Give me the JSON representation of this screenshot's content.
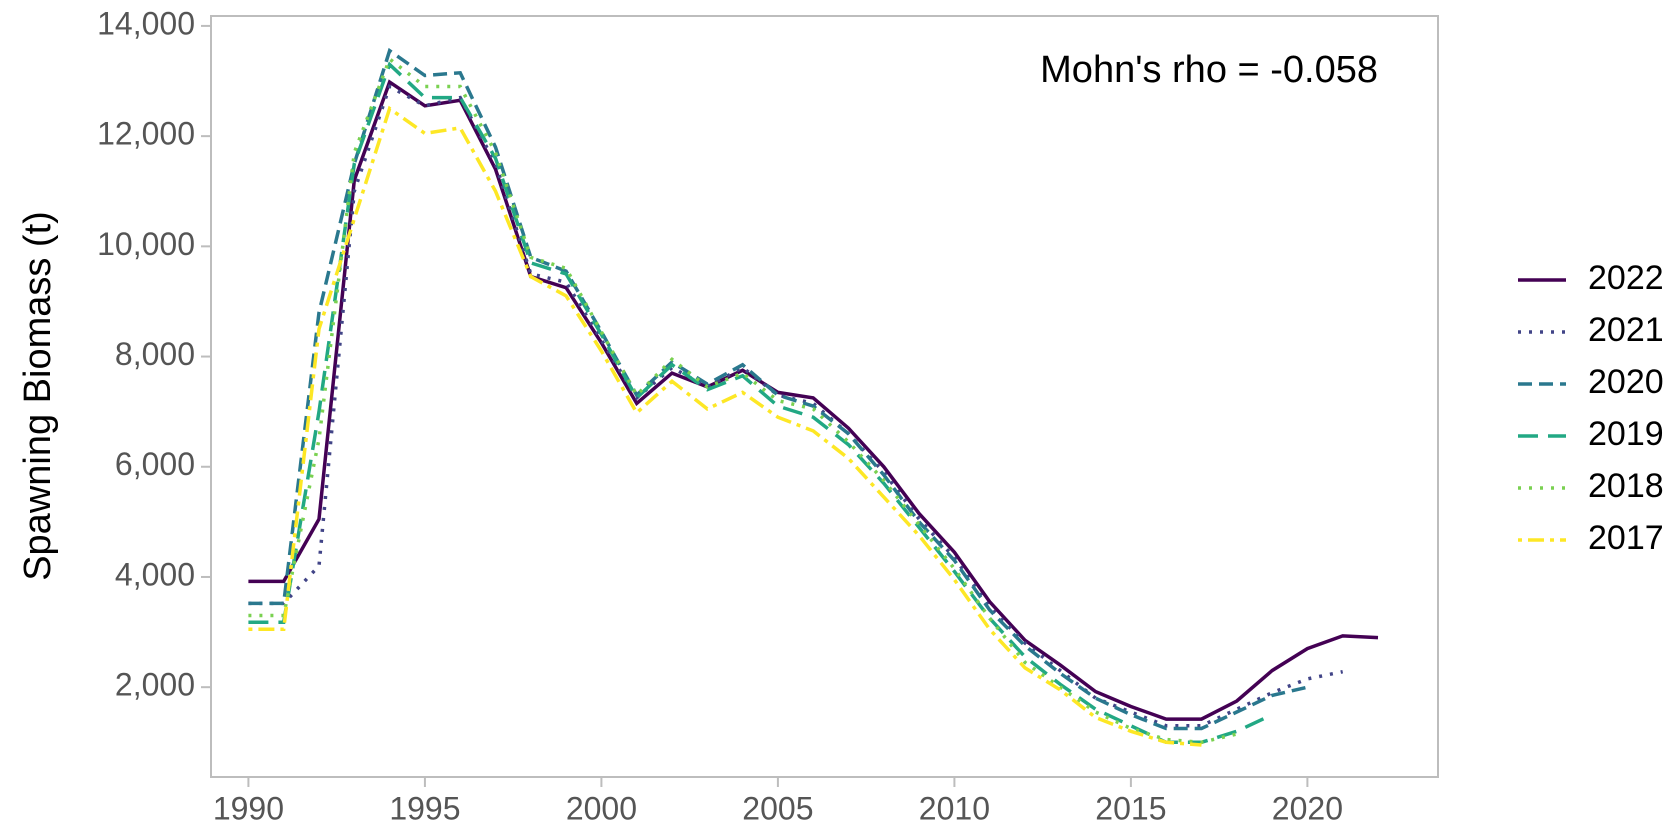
{
  "chart_data": {
    "type": "line",
    "y_label": "Spawning Biomass (t)",
    "annotation": "Mohn's rho = -0.058",
    "xlim": [
      1988.94,
      2023.7
    ],
    "xticks": [
      1990,
      1995,
      2000,
      2005,
      2010,
      2015,
      2020
    ],
    "ylim": [
      370,
      14180
    ],
    "yticks": [
      {
        "value": 2000,
        "label": "2,000"
      },
      {
        "value": 4000,
        "label": "4,000"
      },
      {
        "value": 6000,
        "label": "6,000"
      },
      {
        "value": 8000,
        "label": "8,000"
      },
      {
        "value": 10000,
        "label": "10,000"
      },
      {
        "value": 12000,
        "label": "12,000"
      },
      {
        "value": 14000,
        "label": "14,000"
      }
    ],
    "legend": "right",
    "series": [
      {
        "name": "2022",
        "color": "#440154",
        "dash": "solid",
        "x": [
          1990,
          1991,
          1992,
          1993,
          1994,
          1995,
          1996,
          1997,
          1998,
          1999,
          2000,
          2001,
          2002,
          2003,
          2004,
          2005,
          2006,
          2007,
          2008,
          2009,
          2010,
          2011,
          2012,
          2013,
          2014,
          2015,
          2016,
          2017,
          2018,
          2019,
          2020,
          2021,
          2022
        ],
        "values": [
          3920,
          3920,
          5050,
          11200,
          12980,
          12550,
          12650,
          11400,
          9450,
          9250,
          8250,
          7150,
          7700,
          7450,
          7750,
          7350,
          7250,
          6700,
          6000,
          5150,
          4450,
          3550,
          2850,
          2400,
          1920,
          1650,
          1420,
          1420,
          1750,
          2300,
          2700,
          2930,
          2900
        ]
      },
      {
        "name": "2021",
        "color": "#414487",
        "dash": "dotted",
        "x": [
          1990,
          1991,
          1992,
          1993,
          1994,
          1995,
          1996,
          1997,
          1998,
          1999,
          2000,
          2001,
          2002,
          2003,
          2004,
          2005,
          2006,
          2007,
          2008,
          2009,
          2010,
          2011,
          2012,
          2013,
          2014,
          2015,
          2016,
          2017,
          2018,
          2019,
          2020,
          2021
        ],
        "values": [
          3520,
          3520,
          4200,
          11000,
          12900,
          12550,
          12700,
          11500,
          9500,
          9350,
          8300,
          7250,
          7800,
          7450,
          7800,
          7300,
          7150,
          6600,
          5900,
          5050,
          4350,
          3450,
          2800,
          2300,
          1800,
          1550,
          1300,
          1300,
          1600,
          1900,
          2150,
          2280
        ]
      },
      {
        "name": "2020",
        "color": "#2A788E",
        "dash": "dashed",
        "x": [
          1990,
          1991,
          1992,
          1993,
          1994,
          1995,
          1996,
          1997,
          1998,
          1999,
          2000,
          2001,
          2002,
          2003,
          2004,
          2005,
          2006,
          2007,
          2008,
          2009,
          2010,
          2011,
          2012,
          2013,
          2014,
          2015,
          2016,
          2017,
          2018,
          2019,
          2020
        ],
        "values": [
          3520,
          3520,
          8800,
          11500,
          13550,
          13100,
          13150,
          11800,
          9800,
          9550,
          8450,
          7300,
          7900,
          7500,
          7850,
          7300,
          7100,
          6600,
          5850,
          5000,
          4300,
          3400,
          2750,
          2250,
          1800,
          1500,
          1250,
          1250,
          1550,
          1850,
          2000
        ]
      },
      {
        "name": "2019",
        "color": "#22A884",
        "dash": "longdash",
        "x": [
          1990,
          1991,
          1992,
          1993,
          1994,
          1995,
          1996,
          1997,
          1998,
          1999,
          2000,
          2001,
          2002,
          2003,
          2004,
          2005,
          2006,
          2007,
          2008,
          2009,
          2010,
          2011,
          2012,
          2013,
          2014,
          2015,
          2016,
          2017,
          2018,
          2019
        ],
        "values": [
          3180,
          3180,
          7000,
          11500,
          13300,
          12700,
          12700,
          11600,
          9700,
          9500,
          8400,
          7250,
          7850,
          7400,
          7650,
          7100,
          6900,
          6400,
          5700,
          4900,
          4100,
          3250,
          2550,
          2050,
          1600,
          1300,
          1000,
          1000,
          1200,
          1500
        ]
      },
      {
        "name": "2018",
        "color": "#7AD151",
        "dash": "dotted",
        "x": [
          1990,
          1991,
          1992,
          1993,
          1994,
          1995,
          1996,
          1997,
          1998,
          1999,
          2000,
          2001,
          2002,
          2003,
          2004,
          2005,
          2006,
          2007,
          2008,
          2009,
          2010,
          2011,
          2012,
          2013,
          2014,
          2015,
          2016,
          2017,
          2018
        ],
        "values": [
          3300,
          3300,
          6500,
          11700,
          13400,
          12900,
          12900,
          11700,
          9800,
          9600,
          8450,
          7300,
          7950,
          7450,
          7700,
          7200,
          7050,
          6450,
          5750,
          4950,
          4150,
          3250,
          2450,
          2000,
          1550,
          1250,
          1050,
          1000,
          1150
        ]
      },
      {
        "name": "2017",
        "color": "#FDE725",
        "dash": "dashdot",
        "x": [
          1990,
          1991,
          1992,
          1993,
          1994,
          1995,
          1996,
          1997,
          1998,
          1999,
          2000,
          2001,
          2002,
          2003,
          2004,
          2005,
          2006,
          2007,
          2008,
          2009,
          2010,
          2011,
          2012,
          2013,
          2014,
          2015,
          2016,
          2017
        ],
        "values": [
          3050,
          3050,
          8500,
          10500,
          12500,
          12050,
          12150,
          11000,
          9450,
          9100,
          8100,
          6980,
          7550,
          7050,
          7350,
          6900,
          6650,
          6150,
          5450,
          4750,
          3950,
          3050,
          2350,
          1950,
          1450,
          1200,
          1000,
          950
        ]
      }
    ]
  }
}
